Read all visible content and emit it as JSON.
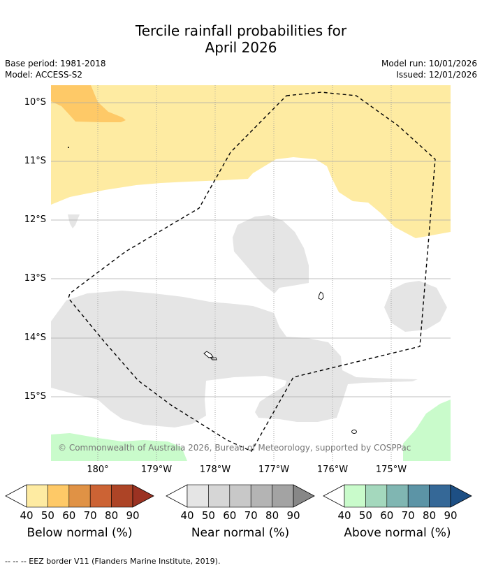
{
  "title": {
    "line1": "Tercile rainfall probabilities for",
    "line2": "April 2026"
  },
  "meta": {
    "base_period": "Base period: 1981-2018",
    "model": "Model: ACCESS-S2",
    "model_run": "Model run: 10/01/2026",
    "issued": "Issued: 12/01/2026"
  },
  "map": {
    "lat_labels": [
      "10°S",
      "11°S",
      "12°S",
      "13°S",
      "14°S",
      "15°S"
    ],
    "lon_labels": [
      "180°",
      "179°W",
      "178°W",
      "177°W",
      "176°W",
      "175°W"
    ],
    "copyright": "© Commonwealth of Australia 2026, Bureau of Meteorology, supported by COSPPac"
  },
  "colorbars": [
    {
      "name": "Below normal (%)",
      "ticks": [
        "40",
        "50",
        "60",
        "70",
        "80",
        "90"
      ],
      "colors": [
        "#feeba2",
        "#fec967",
        "#e09245",
        "#cc6334",
        "#ad4426"
      ],
      "over_color": "#9b3222"
    },
    {
      "name": "Near normal (%)",
      "ticks": [
        "40",
        "50",
        "60",
        "70",
        "80",
        "90"
      ],
      "colors": [
        "#e5e5e5",
        "#d6d6d6",
        "#c8c8c8",
        "#b4b4b4",
        "#a3a3a3"
      ],
      "over_color": "#878787"
    },
    {
      "name": "Above normal (%)",
      "ticks": [
        "40",
        "50",
        "60",
        "70",
        "80",
        "90"
      ],
      "colors": [
        "#c9fbcb",
        "#a4d8bd",
        "#80b6b2",
        "#5c94a6",
        "#356897"
      ],
      "over_color": "#1d4f84"
    }
  ],
  "footnote": "--  --  -- EEZ border V11 (Flanders Marine Institute, 2019)."
}
